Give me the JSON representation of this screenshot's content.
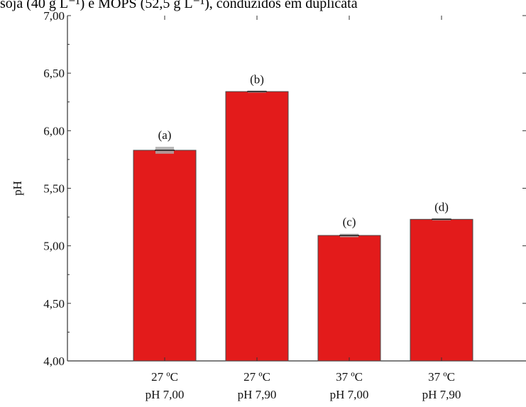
{
  "caption": "soja (40 g L⁻¹) e MOPS (52,5 g L⁻¹), conduzidos em duplicata",
  "colors": {
    "bar": "#e31b1b",
    "bar_stroke": "#4a4a4a",
    "error_bar": "#aaaaaa",
    "axis": "#333333"
  },
  "chart_data": {
    "type": "bar",
    "ylabel": "pH",
    "xlabel": "",
    "ylim": [
      4.0,
      7.0
    ],
    "yticks": [
      4.0,
      4.5,
      5.0,
      5.5,
      6.0,
      6.5,
      7.0
    ],
    "ytick_labels": [
      "4,00",
      "4,50",
      "5,00",
      "5,50",
      "6,00",
      "6,50",
      "7,00"
    ],
    "categories": [
      [
        "27 ºC",
        "pH 7,00"
      ],
      [
        "27 ºC",
        "pH 7,90"
      ],
      [
        "37 ºC",
        "pH 7,00"
      ],
      [
        "37 ºC",
        "pH 7,90"
      ]
    ],
    "values": [
      5.83,
      6.34,
      5.09,
      5.23
    ],
    "errors": [
      0.03,
      0.005,
      0.015,
      0.005
    ],
    "annotations": [
      "(a)",
      "(b)",
      "(c)",
      "(d)"
    ],
    "grid": false
  }
}
